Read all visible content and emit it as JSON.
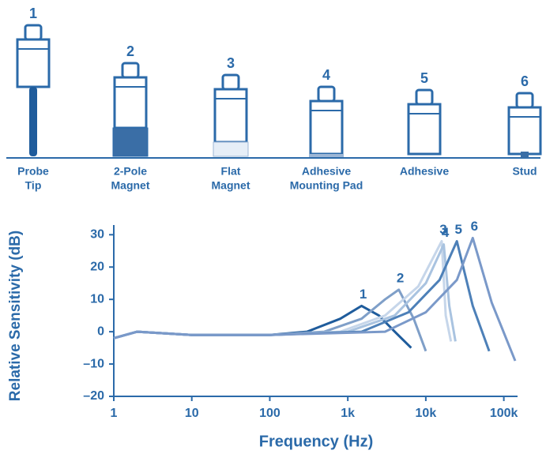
{
  "sensors": [
    {
      "number": "1",
      "label": [
        "Probe",
        "Tip"
      ]
    },
    {
      "number": "2",
      "label": [
        "2-Pole",
        "Magnet"
      ]
    },
    {
      "number": "3",
      "label": [
        "Flat",
        "Magnet"
      ]
    },
    {
      "number": "4",
      "label": [
        "Adhesive",
        "Mounting Pad"
      ]
    },
    {
      "number": "5",
      "label": [
        "Adhesive"
      ]
    },
    {
      "number": "6",
      "label": [
        "Stud"
      ]
    }
  ],
  "chart_data": {
    "type": "line",
    "x_label": "Frequency (Hz)",
    "y_label": "Relative Sensitivity (dB)",
    "x_scale": "log",
    "xlim": [
      1,
      150000
    ],
    "ylim": [
      -20,
      33
    ],
    "xticks": [
      {
        "value": 1,
        "label": "1"
      },
      {
        "value": 10,
        "label": "10"
      },
      {
        "value": 100,
        "label": "100"
      },
      {
        "value": 1000,
        "label": "1k"
      },
      {
        "value": 10000,
        "label": "10k"
      },
      {
        "value": 100000,
        "label": "100k"
      }
    ],
    "yticks": [
      30,
      20,
      10,
      0,
      {
        "value": -10,
        "label": "–10"
      },
      {
        "value": -20,
        "label": "–20"
      }
    ],
    "series": [
      {
        "name": "1",
        "color": "#1f5c9c",
        "x": [
          1,
          2,
          10,
          100,
          300,
          800,
          1500,
          2500,
          4000,
          6500
        ],
        "values": [
          -2,
          0,
          -1,
          -1,
          0,
          4,
          8,
          5,
          0,
          -5
        ]
      },
      {
        "name": "2",
        "color": "#7f9fc8",
        "x": [
          1,
          2,
          10,
          100,
          500,
          1500,
          3000,
          4500,
          7000,
          10000
        ],
        "values": [
          -2,
          0,
          -1,
          -1,
          0,
          4,
          10,
          13,
          4,
          -6
        ]
      },
      {
        "name": "3",
        "color": "#c6d6ea",
        "x": [
          1,
          2,
          10,
          100,
          800,
          3000,
          8000,
          16000,
          18000,
          21000
        ],
        "values": [
          -2,
          0,
          -1,
          -1,
          0,
          5,
          14,
          28,
          5,
          -3
        ]
      },
      {
        "name": "4",
        "color": "#a9c3e0",
        "x": [
          1,
          2,
          10,
          100,
          1000,
          4000,
          10000,
          17000,
          20000,
          24000
        ],
        "values": [
          -2,
          0,
          -1,
          -1,
          0,
          5,
          15,
          27,
          8,
          -3
        ]
      },
      {
        "name": "5",
        "color": "#4d80b8",
        "x": [
          1,
          2,
          10,
          100,
          1500,
          6000,
          15000,
          25000,
          40000,
          65000
        ],
        "values": [
          -2,
          0,
          -1,
          -1,
          0,
          6,
          16,
          28,
          8,
          -6
        ]
      },
      {
        "name": "6",
        "color": "#7a99c9",
        "x": [
          1,
          2,
          10,
          100,
          3000,
          10000,
          25000,
          40000,
          70000,
          140000
        ],
        "values": [
          -2,
          0,
          -1,
          -1,
          0,
          6,
          16,
          29,
          9,
          -9
        ]
      }
    ]
  }
}
